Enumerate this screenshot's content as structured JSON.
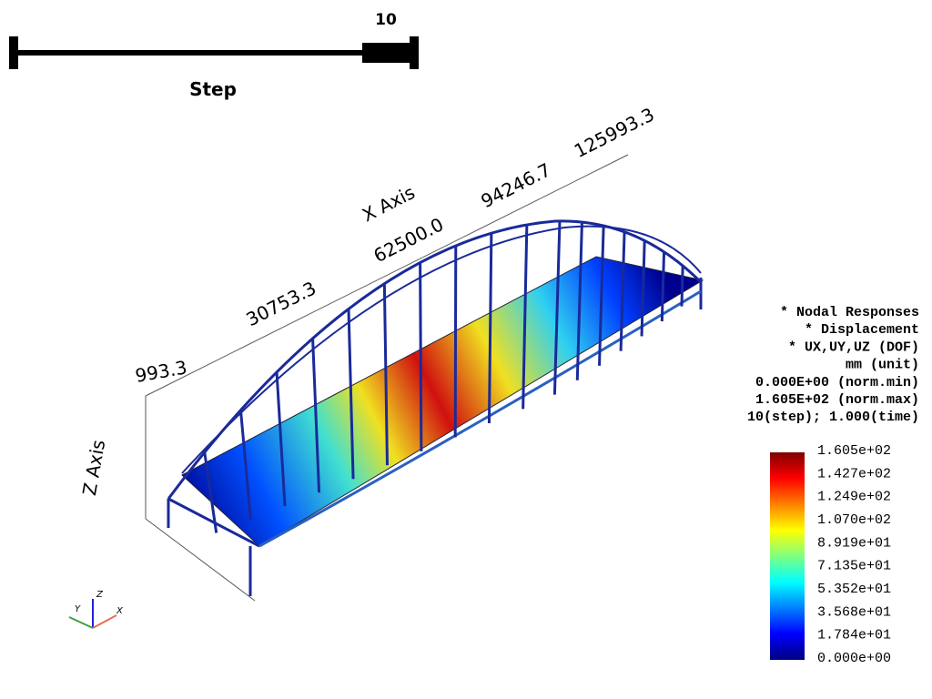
{
  "slider": {
    "value": "10",
    "title": "Step"
  },
  "axes": {
    "x_title": "X Axis",
    "x_labels": [
      "30753.3",
      "62500.0",
      "94246.7",
      "125993.3"
    ],
    "z_title": "Z Axis",
    "z_top_label": "993.3"
  },
  "info": [
    "* Nodal Responses",
    "* Displacement",
    "* UX,UY,UZ (DOF)",
    "mm (unit)",
    "0.000E+00 (norm.min)",
    "1.605E+02 (norm.max)",
    "10(step); 1.000(time)"
  ],
  "colorbar": {
    "labels": [
      "1.605e+02",
      "1.427e+02",
      "1.249e+02",
      "1.070e+02",
      "8.919e+01",
      "7.135e+01",
      "5.352e+01",
      "3.568e+01",
      "1.784e+01",
      "0.000e+00"
    ]
  },
  "orientation": {
    "x": "X",
    "y": "Y",
    "z": "Z"
  }
}
